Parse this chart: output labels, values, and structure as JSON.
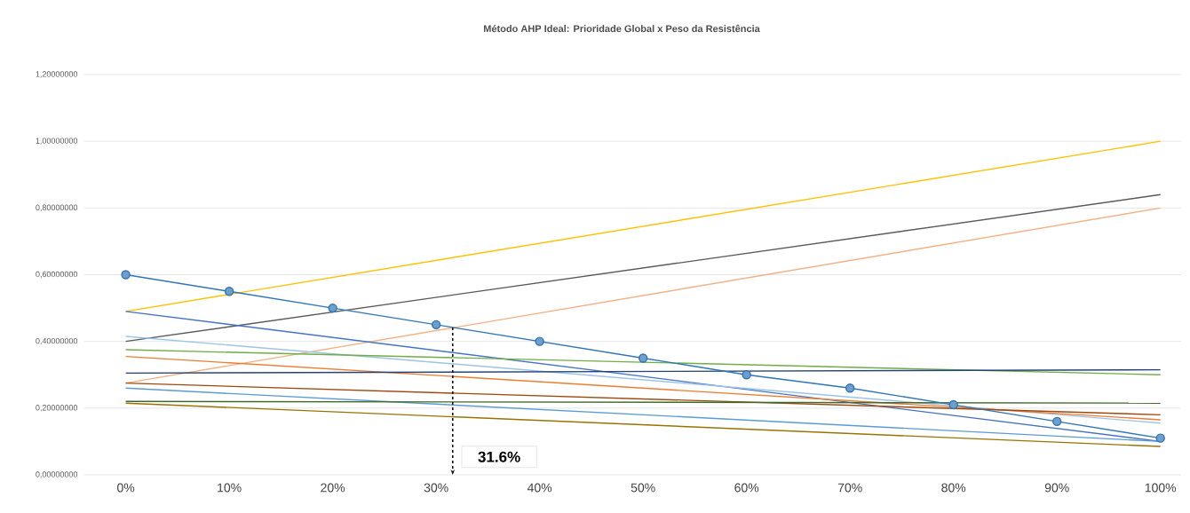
{
  "chart_data": {
    "type": "line",
    "title": "Método AHP Ideal: Prioridade Global x Peso da Resistência",
    "xlim": [
      -4,
      102
    ],
    "ylim": [
      0,
      1.2
    ],
    "xticks": [
      {
        "value": 0,
        "label": "0%"
      },
      {
        "value": 10,
        "label": "10%"
      },
      {
        "value": 20,
        "label": "20%"
      },
      {
        "value": 30,
        "label": "30%"
      },
      {
        "value": 40,
        "label": "40%"
      },
      {
        "value": 50,
        "label": "50%"
      },
      {
        "value": 60,
        "label": "60%"
      },
      {
        "value": 70,
        "label": "70%"
      },
      {
        "value": 80,
        "label": "80%"
      },
      {
        "value": 90,
        "label": "90%"
      },
      {
        "value": 100,
        "label": "100%"
      }
    ],
    "yticks": [
      {
        "value": 0,
        "label": "0,00000000"
      },
      {
        "value": 0.2,
        "label": "0,20000000"
      },
      {
        "value": 0.4,
        "label": "0,40000000"
      },
      {
        "value": 0.6,
        "label": "0,60000000"
      },
      {
        "value": 0.8,
        "label": "0,80000000"
      },
      {
        "value": 1.0,
        "label": "1,00000000"
      },
      {
        "value": 1.2,
        "label": "1,20000000"
      }
    ],
    "grid": "y",
    "series": [
      {
        "color": "#ffc000",
        "x": [
          0,
          100
        ],
        "values": [
          0.49,
          1.0
        ]
      },
      {
        "color": "#595959",
        "x": [
          0,
          100
        ],
        "values": [
          0.4,
          0.84
        ]
      },
      {
        "color": "#f4b183",
        "x": [
          0,
          100
        ],
        "values": [
          0.275,
          0.8
        ]
      },
      {
        "color": "#4472c4",
        "x": [
          0,
          100
        ],
        "values": [
          0.49,
          0.1
        ]
      },
      {
        "color": "#9dc3e6",
        "x": [
          0,
          100
        ],
        "values": [
          0.415,
          0.155
        ]
      },
      {
        "color": "#70ad47",
        "x": [
          0,
          100
        ],
        "values": [
          0.375,
          0.3
        ]
      },
      {
        "color": "#ed7d31",
        "x": [
          0,
          100
        ],
        "values": [
          0.355,
          0.165
        ]
      },
      {
        "color": "#264478",
        "x": [
          0,
          100
        ],
        "values": [
          0.305,
          0.315
        ]
      },
      {
        "color": "#9e480e",
        "x": [
          0,
          100
        ],
        "values": [
          0.275,
          0.18
        ]
      },
      {
        "color": "#5b9bd5",
        "x": [
          0,
          100
        ],
        "values": [
          0.26,
          0.1
        ]
      },
      {
        "color": "#43682b",
        "x": [
          0,
          100
        ],
        "values": [
          0.22,
          0.215
        ]
      },
      {
        "color": "#997300",
        "x": [
          0,
          100
        ],
        "values": [
          0.215,
          0.085
        ]
      },
      {
        "color": "#2e75b6",
        "marker": "circle",
        "x": [
          0,
          10,
          20,
          30,
          40,
          50,
          60,
          70,
          80,
          90,
          100
        ],
        "values": [
          0.6,
          0.55,
          0.5,
          0.45,
          0.4,
          0.35,
          0.3,
          0.26,
          0.21,
          0.16,
          0.11
        ]
      }
    ],
    "ref_lines": [
      {
        "axis": "x",
        "value": 31.6,
        "label": "31.6%",
        "color": "#000000",
        "line_style": "dashed"
      }
    ]
  }
}
